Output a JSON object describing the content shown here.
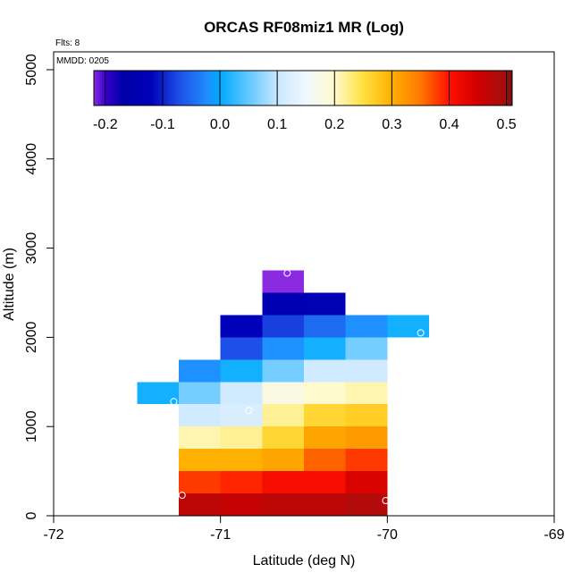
{
  "chart_data": {
    "type": "heatmap",
    "title": "ORCAS RF08miz1 MR (Log)",
    "xlabel": "Latitude (deg N)",
    "ylabel": "Altitude (m)",
    "xlim": [
      -72,
      -69
    ],
    "ylim": [
      0,
      5200
    ],
    "x_ticks": [
      -72,
      -71,
      -70,
      -69
    ],
    "y_ticks": [
      0,
      1000,
      2000,
      3000,
      4000,
      5000
    ],
    "annotations": {
      "flights": "Flts: 8",
      "mmdd": "MMDD: 0205"
    },
    "colorbar": {
      "min": -0.22,
      "max": 0.51,
      "ticks": [
        -0.2,
        -0.1,
        0.0,
        0.1,
        0.2,
        0.3,
        0.4,
        0.5
      ],
      "tick_labels": [
        "-0.2",
        "-0.1",
        "0.0",
        "0.1",
        "0.2",
        "0.3",
        "0.4",
        "0.5"
      ],
      "stops": [
        {
          "v": -0.22,
          "c": "#8a2be2"
        },
        {
          "v": -0.2,
          "c": "#3a00d0"
        },
        {
          "v": -0.17,
          "c": "#0000a8"
        },
        {
          "v": -0.12,
          "c": "#0000b8"
        },
        {
          "v": -0.07,
          "c": "#1e50e8"
        },
        {
          "v": -0.02,
          "c": "#1e90ff"
        },
        {
          "v": 0.0,
          "c": "#00aaff"
        },
        {
          "v": 0.05,
          "c": "#60c8ff"
        },
        {
          "v": 0.1,
          "c": "#c8e8ff"
        },
        {
          "v": 0.15,
          "c": "#f0f8ff"
        },
        {
          "v": 0.2,
          "c": "#fffacd"
        },
        {
          "v": 0.25,
          "c": "#ffe040"
        },
        {
          "v": 0.3,
          "c": "#ffb000"
        },
        {
          "v": 0.35,
          "c": "#ff7800"
        },
        {
          "v": 0.4,
          "c": "#ff1000"
        },
        {
          "v": 0.45,
          "c": "#d00000"
        },
        {
          "v": 0.5,
          "c": "#a01010"
        },
        {
          "v": 0.51,
          "c": "#6b1010"
        }
      ]
    },
    "cell_width_deg": 0.25,
    "cell_height_m": 250,
    "cells": [
      {
        "lat": -71.125,
        "alt": 125,
        "value": 0.47
      },
      {
        "lat": -70.875,
        "alt": 125,
        "value": 0.46
      },
      {
        "lat": -70.625,
        "alt": 125,
        "value": 0.47
      },
      {
        "lat": -70.375,
        "alt": 125,
        "value": 0.47
      },
      {
        "lat": -70.125,
        "alt": 125,
        "value": 0.48
      },
      {
        "lat": -71.125,
        "alt": 375,
        "value": 0.38
      },
      {
        "lat": -70.875,
        "alt": 375,
        "value": 0.39
      },
      {
        "lat": -70.625,
        "alt": 375,
        "value": 0.41
      },
      {
        "lat": -70.375,
        "alt": 375,
        "value": 0.41
      },
      {
        "lat": -70.125,
        "alt": 375,
        "value": 0.44
      },
      {
        "lat": -71.125,
        "alt": 625,
        "value": 0.3
      },
      {
        "lat": -70.875,
        "alt": 625,
        "value": 0.3
      },
      {
        "lat": -70.625,
        "alt": 625,
        "value": 0.31
      },
      {
        "lat": -70.375,
        "alt": 625,
        "value": 0.36
      },
      {
        "lat": -70.125,
        "alt": 625,
        "value": 0.38
      },
      {
        "lat": -71.125,
        "alt": 875,
        "value": 0.21
      },
      {
        "lat": -70.875,
        "alt": 875,
        "value": 0.22
      },
      {
        "lat": -70.625,
        "alt": 875,
        "value": 0.26
      },
      {
        "lat": -70.375,
        "alt": 875,
        "value": 0.31
      },
      {
        "lat": -70.125,
        "alt": 875,
        "value": 0.32
      },
      {
        "lat": -71.125,
        "alt": 1125,
        "value": 0.11
      },
      {
        "lat": -70.875,
        "alt": 1125,
        "value": 0.12
      },
      {
        "lat": -70.625,
        "alt": 1125,
        "value": 0.22
      },
      {
        "lat": -70.375,
        "alt": 1125,
        "value": 0.26
      },
      {
        "lat": -70.125,
        "alt": 1125,
        "value": 0.27
      },
      {
        "lat": -71.375,
        "alt": 1375,
        "value": 0.01
      },
      {
        "lat": -71.125,
        "alt": 1375,
        "value": 0.06
      },
      {
        "lat": -70.875,
        "alt": 1375,
        "value": 0.11
      },
      {
        "lat": -70.625,
        "alt": 1375,
        "value": 0.18
      },
      {
        "lat": -70.375,
        "alt": 1375,
        "value": 0.2
      },
      {
        "lat": -70.125,
        "alt": 1375,
        "value": 0.21
      },
      {
        "lat": -71.125,
        "alt": 1625,
        "value": -0.02
      },
      {
        "lat": -70.875,
        "alt": 1625,
        "value": 0.01
      },
      {
        "lat": -70.625,
        "alt": 1625,
        "value": 0.06
      },
      {
        "lat": -70.375,
        "alt": 1625,
        "value": 0.11
      },
      {
        "lat": -70.125,
        "alt": 1625,
        "value": 0.11
      },
      {
        "lat": -70.875,
        "alt": 1875,
        "value": -0.07
      },
      {
        "lat": -70.625,
        "alt": 1875,
        "value": -0.02
      },
      {
        "lat": -70.375,
        "alt": 1875,
        "value": 0.01
      },
      {
        "lat": -70.125,
        "alt": 1875,
        "value": 0.06
      },
      {
        "lat": -70.875,
        "alt": 2125,
        "value": -0.12
      },
      {
        "lat": -70.625,
        "alt": 2125,
        "value": -0.08
      },
      {
        "lat": -70.375,
        "alt": 2125,
        "value": -0.05
      },
      {
        "lat": -70.125,
        "alt": 2125,
        "value": -0.02
      },
      {
        "lat": -69.875,
        "alt": 2125,
        "value": 0.01
      },
      {
        "lat": -70.625,
        "alt": 2375,
        "value": -0.14
      },
      {
        "lat": -70.375,
        "alt": 2375,
        "value": -0.13
      },
      {
        "lat": -70.625,
        "alt": 2625,
        "value": -0.22
      }
    ],
    "markers": [
      {
        "lat": -70.6,
        "alt": 2720
      },
      {
        "lat": -69.8,
        "alt": 2050
      },
      {
        "lat": -71.28,
        "alt": 1280
      },
      {
        "lat": -70.83,
        "alt": 1180
      },
      {
        "lat": -71.23,
        "alt": 230
      },
      {
        "lat": -70.01,
        "alt": 170
      }
    ]
  }
}
